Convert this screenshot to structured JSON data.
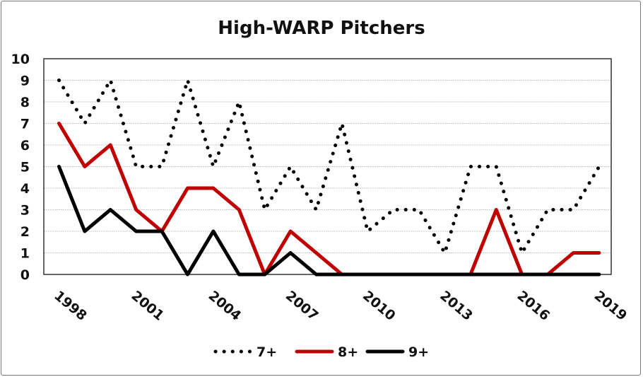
{
  "chart_data": {
    "type": "line",
    "title": "High-WARP Pitchers",
    "xlabel": "",
    "ylabel": "",
    "x": [
      1998,
      1999,
      2000,
      2001,
      2002,
      2003,
      2004,
      2005,
      2006,
      2007,
      2008,
      2009,
      2010,
      2011,
      2012,
      2013,
      2014,
      2015,
      2016,
      2017,
      2018,
      2019
    ],
    "x_tick_labels": [
      "1998",
      "2001",
      "2004",
      "2007",
      "2010",
      "2013",
      "2016",
      "2019"
    ],
    "y_tick_labels": [
      "0",
      "1",
      "2",
      "3",
      "4",
      "5",
      "6",
      "7",
      "8",
      "9",
      "10"
    ],
    "ylim": [
      0,
      10
    ],
    "grid": true,
    "legend_position": "bottom",
    "series": [
      {
        "name": "7+",
        "color": "#000000",
        "style": "dotted",
        "values": [
          9,
          7,
          9,
          5,
          5,
          9,
          5,
          8,
          3,
          5,
          3,
          7,
          2,
          3,
          3,
          1,
          5,
          5,
          1,
          3,
          3,
          5
        ]
      },
      {
        "name": "8+",
        "color": "#c00000",
        "style": "solid",
        "values": [
          7,
          5,
          6,
          3,
          2,
          4,
          4,
          3,
          0,
          2,
          1,
          0,
          0,
          0,
          0,
          0,
          0,
          3,
          0,
          0,
          1,
          1
        ]
      },
      {
        "name": "9+",
        "color": "#000000",
        "style": "solid",
        "values": [
          5,
          2,
          3,
          2,
          2,
          0,
          2,
          0,
          0,
          1,
          0,
          0,
          0,
          0,
          0,
          0,
          0,
          0,
          0,
          0,
          0,
          0
        ]
      }
    ]
  }
}
